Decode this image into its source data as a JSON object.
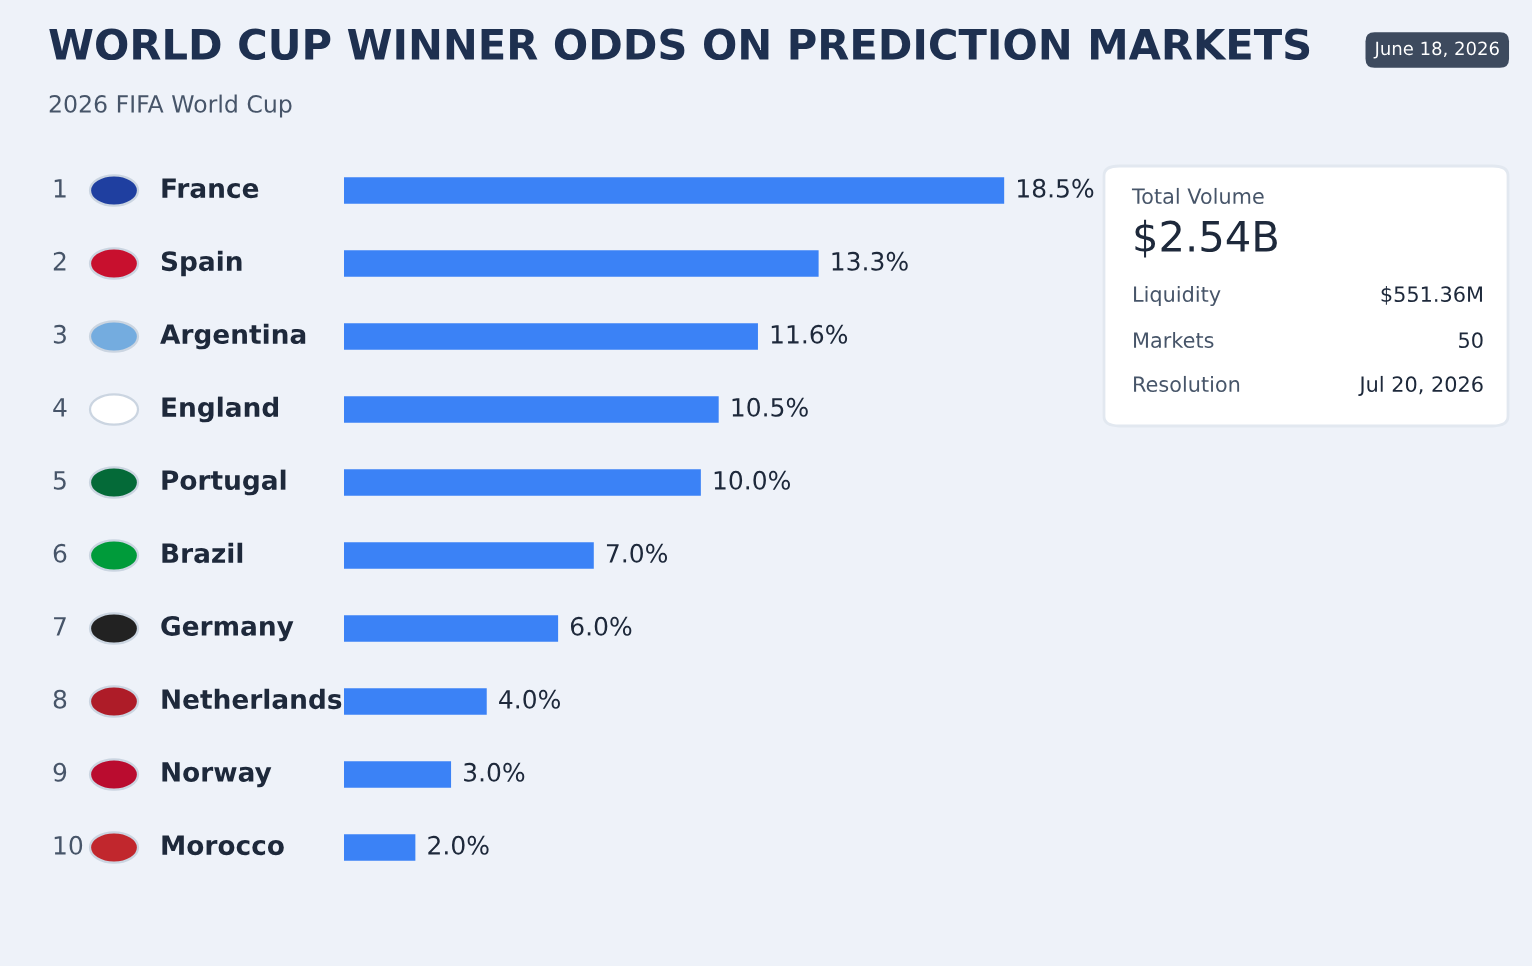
{
  "chart_data": {
    "type": "bar",
    "orientation": "horizontal",
    "data_labels": true,
    "title": "WORLD CUP WINNER ODDS ON PREDICTION MARKETS",
    "subtitle": "2026 FIFA World Cup",
    "categories": [
      "France",
      "Spain",
      "Argentina",
      "England",
      "Portugal",
      "Brazil",
      "Germany",
      "Netherlands",
      "Norway",
      "Morocco"
    ],
    "values": [
      18.5,
      13.3,
      11.6,
      10.5,
      10.0,
      7.0,
      6.0,
      4.0,
      3.0,
      2.0
    ],
    "value_labels": [
      "18.5%",
      "13.3%",
      "11.6%",
      "10.5%",
      "10.0%",
      "7.0%",
      "6.0%",
      "4.0%",
      "3.0%",
      "2.0%"
    ],
    "color": "#3b82f6",
    "annotations": [
      "1",
      "2",
      "3",
      "4",
      "5",
      "6",
      "7",
      "8",
      "9",
      "10",
      "June 18, 2026",
      "Total Volume",
      "$2.54B",
      "Liquidity",
      "$551.36M",
      "Markets",
      "50",
      "Resolution",
      "Jul 20, 2026"
    ]
  }
}
